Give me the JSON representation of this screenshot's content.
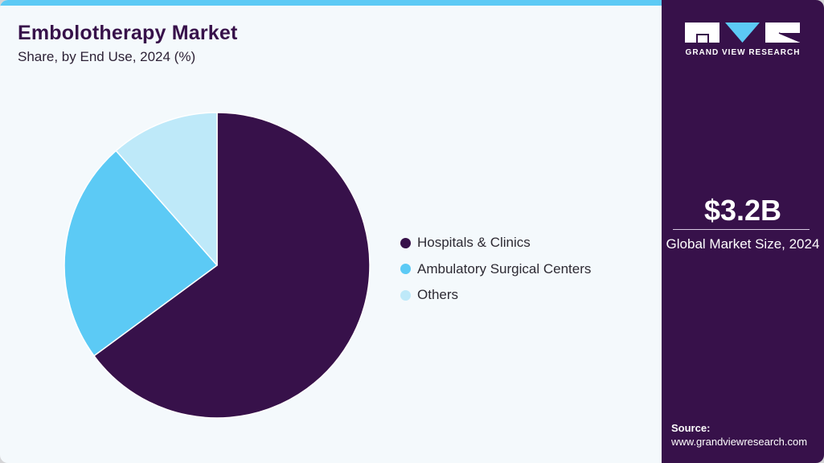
{
  "header": {
    "title": "Embolotherapy Market",
    "subtitle": "Share, by End Use, 2024 (%)"
  },
  "legend": {
    "items": [
      {
        "label": "Hospitals & Clinics",
        "color": "#37114a"
      },
      {
        "label": "Ambulatory Surgical Centers",
        "color": "#5ccaf5"
      },
      {
        "label": "Others",
        "color": "#bee9f9"
      }
    ]
  },
  "sidebar": {
    "logo_text": "GRAND VIEW RESEARCH",
    "market_size_value": "$3.2B",
    "market_size_label": "Global Market Size, 2024",
    "source_label": "Source:",
    "source_url": "www.grandviewresearch.com"
  },
  "colors": {
    "brand_purple": "#37114a",
    "accent_blue": "#5ccaf5",
    "light_blue": "#bee9f9",
    "background": "#f4f9fc"
  },
  "chart_data": {
    "type": "pie",
    "title": "Embolotherapy Market",
    "subtitle": "Share, by End Use, 2024 (%)",
    "categories": [
      "Hospitals & Clinics",
      "Ambulatory Surgical Centers",
      "Others"
    ],
    "values": [
      64.9,
      23.6,
      11.5
    ],
    "colors": [
      "#37114a",
      "#5ccaf5",
      "#bee9f9"
    ],
    "start_angle": "12 o'clock, clockwise",
    "legend_position": "right",
    "data_labels": false
  }
}
